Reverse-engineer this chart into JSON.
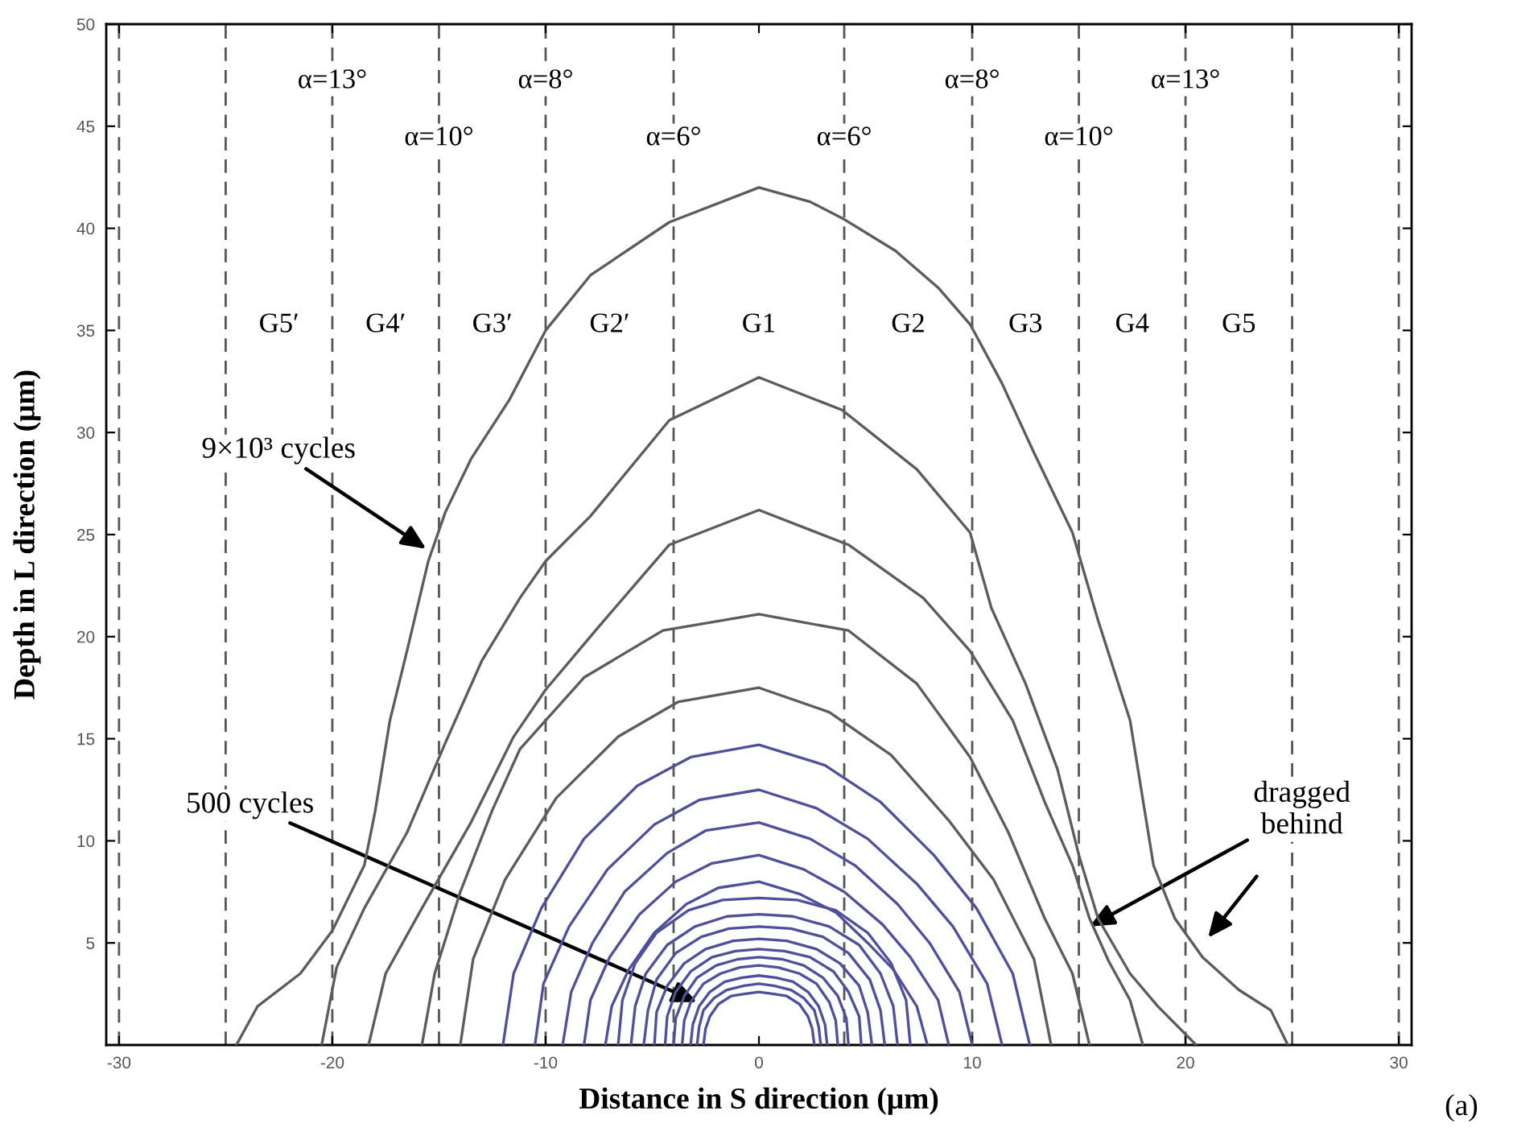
{
  "chart_data": {
    "type": "line",
    "xlabel": "Distance in S direction (μm)",
    "ylabel": "Depth in L direction (μm)",
    "xlim": [
      -30.6,
      30.6
    ],
    "ylim": [
      0,
      50
    ],
    "xticks": [
      -30,
      -20,
      -10,
      0,
      10,
      20,
      30
    ],
    "yticks": [
      5,
      10,
      15,
      20,
      25,
      30,
      35,
      40,
      45,
      50
    ],
    "series": [
      {
        "color": "#5c5c5c",
        "x": [
          -24.5,
          -23.5,
          -21.5,
          -20,
          -18.5,
          -18,
          -17.3,
          -16.5,
          -15.5,
          -14.7,
          -13.5,
          -11.7,
          -10,
          -7.9,
          -4.2,
          0,
          2.4,
          3.9,
          6.4,
          8.4,
          9.9,
          11.4,
          12.9,
          14.7,
          15.9,
          17.4,
          18.5,
          19.5,
          20.8,
          22.5,
          24,
          24.8
        ],
        "values": [
          0,
          1.9,
          3.5,
          5.6,
          8.8,
          11.4,
          15.9,
          19.3,
          23.7,
          26.1,
          28.7,
          31.6,
          35,
          37.7,
          40.3,
          42,
          41.3,
          40.5,
          38.9,
          37.1,
          35.3,
          32.4,
          29,
          25.1,
          20.8,
          15.9,
          8.8,
          6.2,
          4.3,
          2.7,
          1.7,
          0
        ]
      },
      {
        "color": "#5c5c5c",
        "x": [
          -20.5,
          -19.8,
          -18.5,
          -16.5,
          -14.7,
          -13,
          -11.2,
          -10,
          -7.9,
          -4.2,
          0,
          3.9,
          7.4,
          9.9,
          10.9,
          12.5,
          14,
          15,
          15.9,
          17.4,
          18.7,
          20.5
        ],
        "values": [
          0,
          3.8,
          6.7,
          10.4,
          14.8,
          18.8,
          21.9,
          23.7,
          25.9,
          30.6,
          32.7,
          31.1,
          28.2,
          25.1,
          21.4,
          17.7,
          13.5,
          9.3,
          6.2,
          3.5,
          1.9,
          0
        ]
      },
      {
        "color": "#5c5c5c",
        "x": [
          -18.3,
          -17.5,
          -15.8,
          -13.5,
          -11.5,
          -10,
          -7.5,
          -4.2,
          0,
          4.2,
          7.7,
          9.9,
          11.9,
          13.4,
          14.7,
          15.5,
          16.4,
          17.4,
          18
        ],
        "values": [
          0,
          3.5,
          6.7,
          10.9,
          15.1,
          17.4,
          20.5,
          24.5,
          26.2,
          24.5,
          21.9,
          19.3,
          15.9,
          11.9,
          8.8,
          6.2,
          4.1,
          2.2,
          0
        ]
      },
      {
        "color": "#5c5c5c",
        "x": [
          -15.8,
          -15.2,
          -14,
          -12.5,
          -11.2,
          -8.2,
          -4.5,
          0,
          4.2,
          7.4,
          9.9,
          11.7,
          13.4,
          14.7,
          15.5
        ],
        "values": [
          0,
          3.5,
          7.5,
          11.5,
          14.5,
          18,
          20.3,
          21.1,
          20.3,
          17.7,
          14.1,
          10.4,
          6.2,
          3.5,
          0
        ]
      },
      {
        "color": "#5c5c5c",
        "x": [
          -14.0,
          -13.4,
          -11.9,
          -9.5,
          -6.6,
          -3.8,
          0,
          3.3,
          6.2,
          8.9,
          11.0,
          12.9,
          13.7
        ],
        "values": [
          0,
          4.2,
          8.1,
          12.1,
          15.1,
          16.8,
          17.5,
          16.3,
          14.2,
          11.0,
          8.1,
          4.2,
          0
        ]
      },
      {
        "color": "#50509a",
        "x": [
          -12.0,
          -11.5,
          -10.2,
          -8.2,
          -5.7,
          -3.2,
          0,
          3.1,
          5.7,
          8.2,
          10.2,
          11.9,
          12.7
        ],
        "values": [
          0,
          3.5,
          6.7,
          10.1,
          12.7,
          14.1,
          14.7,
          13.7,
          11.9,
          9.3,
          6.7,
          3.5,
          0
        ]
      },
      {
        "color": "#50509a",
        "x": [
          -10.5,
          -10.1,
          -8.9,
          -7.1,
          -4.9,
          -2.8,
          0,
          2.7,
          5.1,
          7.4,
          9.1,
          10.7,
          11.4
        ],
        "values": [
          0,
          3.0,
          5.8,
          8.6,
          10.8,
          12.0,
          12.5,
          11.6,
          10.1,
          7.9,
          5.8,
          3.0,
          0
        ]
      },
      {
        "color": "#50509a",
        "x": [
          -9.2,
          -8.8,
          -7.8,
          -6.3,
          -4.3,
          -2.5,
          0,
          2.4,
          4.5,
          6.5,
          8.0,
          9.4,
          10.0
        ],
        "values": [
          0,
          2.6,
          5.0,
          7.5,
          9.4,
          10.5,
          10.9,
          10.1,
          8.8,
          6.9,
          5.0,
          2.6,
          0
        ]
      },
      {
        "color": "#50509a",
        "x": [
          -8.2,
          -7.9,
          -7.0,
          -5.6,
          -3.9,
          -2.2,
          0,
          2.1,
          4.0,
          5.8,
          7.1,
          8.4,
          8.9
        ],
        "values": [
          0,
          2.2,
          4.3,
          6.4,
          8.0,
          8.9,
          9.3,
          8.6,
          7.5,
          5.9,
          4.3,
          2.2,
          0
        ]
      },
      {
        "color": "#50509a",
        "x": [
          -7.2,
          -6.9,
          -6.1,
          -4.9,
          -3.4,
          -1.9,
          0,
          1.9,
          3.6,
          5.1,
          6.3,
          7.4,
          7.9
        ],
        "values": [
          0,
          1.9,
          3.7,
          5.5,
          6.9,
          7.7,
          8.0,
          7.4,
          6.5,
          5.0,
          3.7,
          1.9,
          0
        ]
      },
      {
        "color": "#50509a",
        "x": [
          -6.6,
          -6.4,
          -5.8,
          -4.8,
          -3.3,
          -1.7,
          0,
          1.8,
          3.6,
          5.1,
          6.2,
          6.9,
          7.1
        ],
        "values": [
          0,
          2.2,
          4.0,
          5.5,
          6.6,
          7.1,
          7.2,
          7.1,
          6.6,
          5.5,
          4.0,
          2.2,
          0
        ]
      },
      {
        "color": "#50509a",
        "x": [
          -6.0,
          -5.8,
          -5.3,
          -4.3,
          -3.0,
          -1.5,
          0,
          1.6,
          3.3,
          4.7,
          5.7,
          6.3,
          6.5
        ],
        "values": [
          0,
          1.9,
          3.5,
          4.9,
          5.8,
          6.3,
          6.4,
          6.3,
          5.8,
          4.9,
          3.5,
          1.9,
          0
        ]
      },
      {
        "color": "#50509a",
        "x": [
          -5.4,
          -5.2,
          -4.8,
          -3.9,
          -2.7,
          -1.4,
          0,
          1.5,
          3.0,
          4.2,
          5.2,
          5.7,
          5.9
        ],
        "values": [
          0,
          1.7,
          3.2,
          4.5,
          5.3,
          5.7,
          5.8,
          5.7,
          5.3,
          4.5,
          3.2,
          1.7,
          0
        ]
      },
      {
        "color": "#50509a",
        "x": [
          -4.9,
          -4.8,
          -4.3,
          -3.5,
          -2.5,
          -1.2,
          0,
          1.3,
          2.7,
          3.8,
          4.7,
          5.1,
          5.3
        ],
        "values": [
          0,
          1.6,
          2.9,
          4.0,
          4.7,
          5.1,
          5.2,
          5.1,
          4.7,
          4.0,
          2.9,
          1.6,
          0
        ]
      },
      {
        "color": "#50509a",
        "x": [
          -4.4,
          -4.3,
          -3.9,
          -3.2,
          -2.2,
          -1.1,
          0,
          1.2,
          2.4,
          3.5,
          4.2,
          4.7,
          4.8
        ],
        "values": [
          0,
          1.4,
          2.6,
          3.6,
          4.3,
          4.6,
          4.7,
          4.6,
          4.3,
          3.6,
          2.6,
          1.4,
          0
        ]
      },
      {
        "color": "#50509a",
        "x": [
          -4.0,
          -3.9,
          -3.5,
          -2.9,
          -2.0,
          -1.0,
          0,
          1.1,
          2.1,
          3.0,
          3.7,
          4.1,
          4.2
        ],
        "values": [
          0,
          1.3,
          2.4,
          3.3,
          3.9,
          4.2,
          4.3,
          4.2,
          3.9,
          3.3,
          2.4,
          1.3,
          0
        ]
      },
      {
        "color": "#50509a",
        "x": [
          -3.6,
          -3.5,
          -3.2,
          -2.6,
          -1.8,
          -0.9,
          0,
          0.9,
          1.9,
          2.7,
          3.3,
          3.6,
          3.7
        ],
        "values": [
          0,
          1.2,
          2.1,
          3.0,
          3.5,
          3.8,
          3.9,
          3.8,
          3.5,
          3.0,
          2.1,
          1.2,
          0
        ]
      },
      {
        "color": "#50509a",
        "x": [
          -3.2,
          -3.1,
          -2.8,
          -2.3,
          -1.6,
          -0.8,
          0,
          0.8,
          1.6,
          2.3,
          2.8,
          3.1,
          3.2
        ],
        "values": [
          0,
          1.0,
          1.9,
          2.6,
          3.1,
          3.3,
          3.4,
          3.3,
          3.1,
          2.6,
          1.9,
          1.0,
          0
        ]
      },
      {
        "color": "#50509a",
        "x": [
          -2.9,
          -2.8,
          -2.6,
          -2.1,
          -1.5,
          -0.7,
          0,
          0.7,
          1.5,
          2.1,
          2.6,
          2.8,
          2.9
        ],
        "values": [
          0,
          0.9,
          1.7,
          2.3,
          2.7,
          2.9,
          3.0,
          2.9,
          2.7,
          2.3,
          1.7,
          0.9,
          0
        ]
      },
      {
        "color": "#50509a",
        "x": [
          -2.6,
          -2.5,
          -2.3,
          -1.9,
          -1.3,
          -0.7,
          0,
          0.7,
          1.3,
          1.9,
          2.3,
          2.5,
          2.6
        ],
        "values": [
          0,
          0.8,
          1.4,
          2.0,
          2.4,
          2.5,
          2.6,
          2.5,
          2.4,
          2.0,
          1.4,
          0.8,
          0
        ]
      }
    ],
    "ref_lines": [
      {
        "axis": "x",
        "value": -30,
        "color": "#555555",
        "line_style": "dashed"
      },
      {
        "axis": "x",
        "value": -25,
        "color": "#555555",
        "line_style": "dashed"
      },
      {
        "axis": "x",
        "value": -20,
        "color": "#555555",
        "line_style": "dashed"
      },
      {
        "axis": "x",
        "value": -15,
        "color": "#555555",
        "line_style": "dashed"
      },
      {
        "axis": "x",
        "value": -10,
        "color": "#555555",
        "line_style": "dashed"
      },
      {
        "axis": "x",
        "value": -4,
        "color": "#555555",
        "line_style": "dashed"
      },
      {
        "axis": "x",
        "value": 4,
        "color": "#555555",
        "line_style": "dashed"
      },
      {
        "axis": "x",
        "value": 10,
        "color": "#555555",
        "line_style": "dashed"
      },
      {
        "axis": "x",
        "value": 15,
        "color": "#555555",
        "line_style": "dashed"
      },
      {
        "axis": "x",
        "value": 20,
        "color": "#555555",
        "line_style": "dashed"
      },
      {
        "axis": "x",
        "value": 25,
        "color": "#555555",
        "line_style": "dashed"
      },
      {
        "axis": "x",
        "value": 30,
        "color": "#555555",
        "line_style": "dashed"
      }
    ],
    "annotations": [
      {
        "text": "α=13°",
        "x": -20,
        "y": 47.2
      },
      {
        "text": "α=10°",
        "x": -15,
        "y": 44.4
      },
      {
        "text": "α=8°",
        "x": -10,
        "y": 47.2
      },
      {
        "text": "α=6°",
        "x": -4,
        "y": 44.4
      },
      {
        "text": "α=6°",
        "x": 4,
        "y": 44.4
      },
      {
        "text": "α=8°",
        "x": 10,
        "y": 47.2
      },
      {
        "text": "α=10°",
        "x": 15,
        "y": 44.4
      },
      {
        "text": "α=13°",
        "x": 20,
        "y": 47.2
      },
      "G5′",
      "G4′",
      "G3′",
      "G2′",
      "G1",
      "G2",
      "G3",
      "G4",
      "G5",
      {
        "text": "9×10³ cycles",
        "x": -15.6,
        "y": 24.3
      },
      {
        "text": "500 cycles",
        "x": -2.9,
        "y": 2.1
      },
      {
        "text": "dragged\nbehind",
        "x": 15.5,
        "y": 5.8
      },
      "(a)"
    ]
  }
}
